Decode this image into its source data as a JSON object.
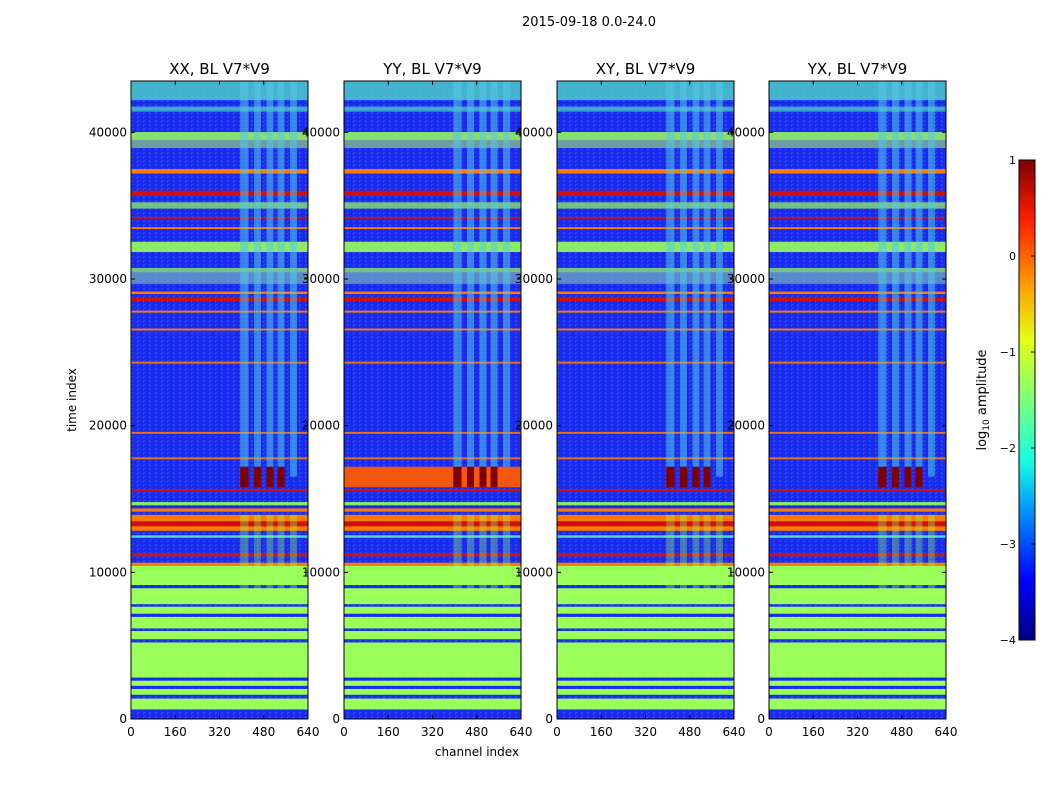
{
  "figure_title": "2015-09-18 0.0-24.0",
  "colors": {
    "background_blue": "#1b2cf0",
    "band_green": "#9aff5a",
    "band_red": "#d01010",
    "band_orange": "#ff7a00",
    "band_cyan": "#4fd6c8"
  },
  "chart_data": [
    {
      "type": "heatmap",
      "title": "XX, BL V7*V9",
      "xlabel": "",
      "ylabel": "time index",
      "xlim": [
        0,
        640
      ],
      "ylim": [
        0,
        43500
      ],
      "xticks": [
        "0",
        "160",
        "320",
        "480",
        "640"
      ],
      "yticks": [
        "0",
        "10000",
        "20000",
        "30000",
        "40000"
      ]
    },
    {
      "type": "heatmap",
      "title": "YY, BL V7*V9",
      "xlabel": "channel index",
      "ylabel": "",
      "xlim": [
        0,
        640
      ],
      "ylim": [
        0,
        43500
      ],
      "xticks": [
        "0",
        "160",
        "320",
        "480",
        "640"
      ],
      "yticks": [
        "0",
        "10000",
        "20000",
        "30000",
        "40000"
      ]
    },
    {
      "type": "heatmap",
      "title": "XY, BL V7*V9",
      "xlabel": "",
      "ylabel": "",
      "xlim": [
        0,
        640
      ],
      "ylim": [
        0,
        43500
      ],
      "xticks": [
        "0",
        "160",
        "320",
        "480",
        "640"
      ],
      "yticks": [
        "0",
        "10000",
        "20000",
        "30000",
        "40000"
      ]
    },
    {
      "type": "heatmap",
      "title": "YX, BL V7*V9",
      "xlabel": "",
      "ylabel": "",
      "xlim": [
        0,
        640
      ],
      "ylim": [
        0,
        43500
      ],
      "xticks": [
        "0",
        "160",
        "320",
        "480",
        "640"
      ],
      "yticks": [
        "0",
        "10000",
        "20000",
        "30000",
        "40000"
      ]
    }
  ],
  "colorbar": {
    "label_prefix": "log",
    "label_subscript": "10",
    "label_suffix": " amplitude",
    "range": [
      -4,
      1
    ],
    "ticks": [
      "1",
      "0",
      "−1",
      "−2",
      "−3",
      "−4"
    ],
    "cmap": [
      "#00007f",
      "#0000ff",
      "#0080ff",
      "#15ffe1",
      "#7dff7a",
      "#e4ff13",
      "#ff9400",
      "#ff1e00",
      "#7f0000"
    ]
  }
}
